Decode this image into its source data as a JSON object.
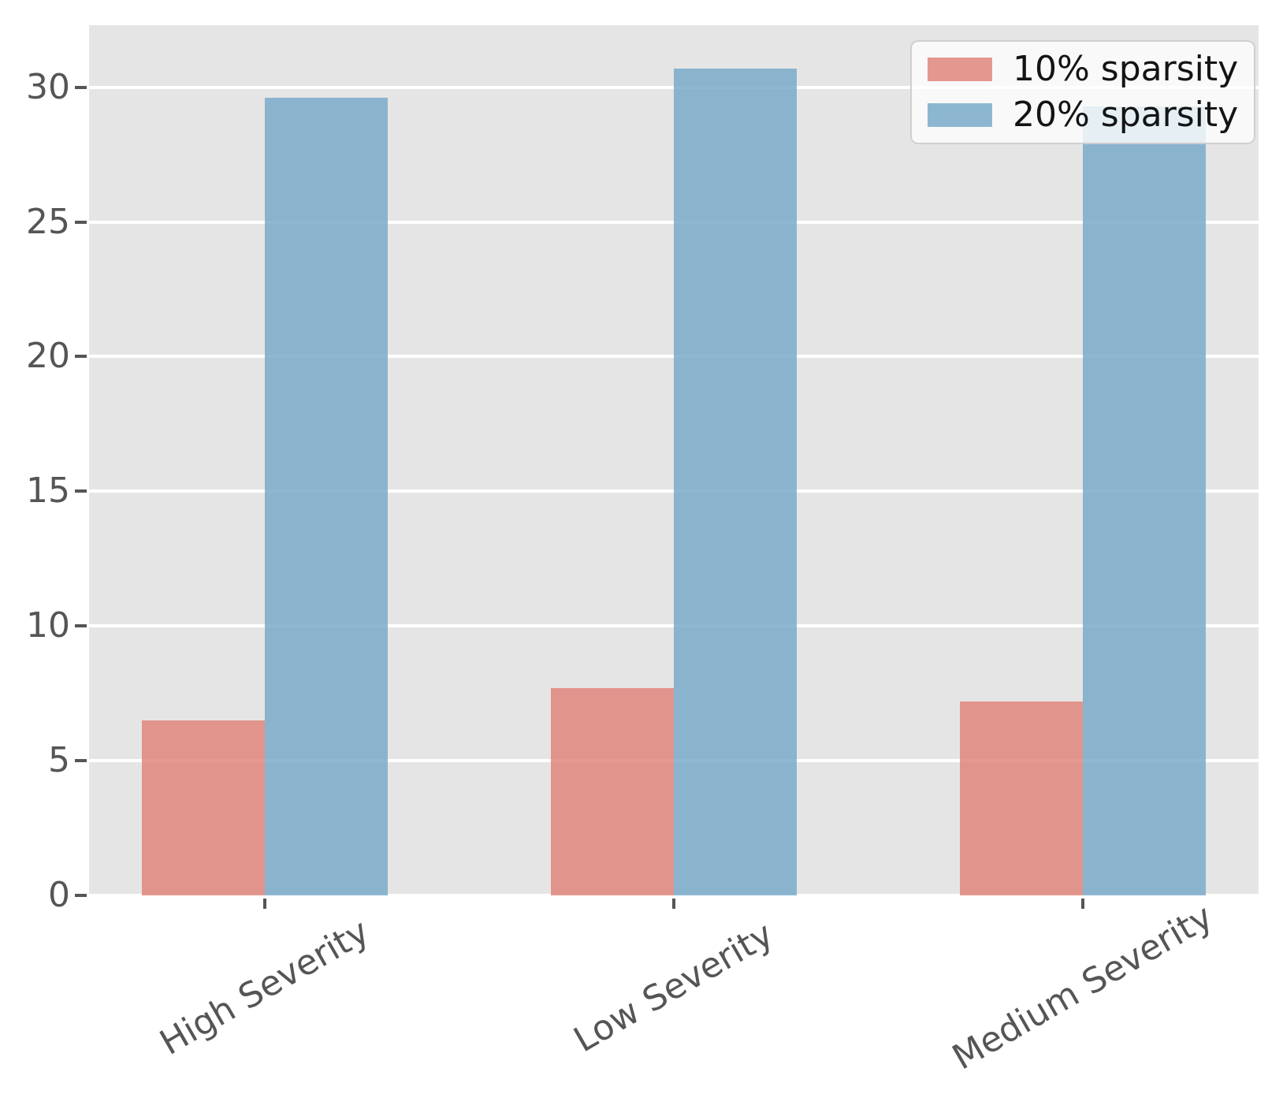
{
  "figure": {
    "background": "#ffffff",
    "plot_background": "#e5e5e5",
    "gridline_color": "#ffffff",
    "tick_color": "#555555",
    "tick_label_color": "#555555"
  },
  "legend": {
    "background": "#ffffff",
    "border_color": "#c8c8c8",
    "text_color": "#141414",
    "position": "upper-right"
  },
  "chart_data": {
    "type": "bar",
    "title": "",
    "xlabel": "",
    "ylabel": "",
    "categories": [
      "High Severity",
      "Low Severity",
      "Medium Severity"
    ],
    "series": [
      {
        "name": "10% sparsity",
        "color": "#e1867c",
        "values": [
          6.5,
          7.7,
          7.2
        ]
      },
      {
        "name": "20% sparsity",
        "color": "#7aabca",
        "values": [
          29.6,
          30.7,
          29.3
        ]
      }
    ],
    "ylim": [
      0,
      32.3
    ],
    "yticks": [
      0,
      5,
      10,
      15,
      20,
      25,
      30
    ],
    "grid": "horizontal",
    "legend_position": "upper right",
    "bar_opacity": 0.85,
    "xtick_rotation_deg": 30
  }
}
